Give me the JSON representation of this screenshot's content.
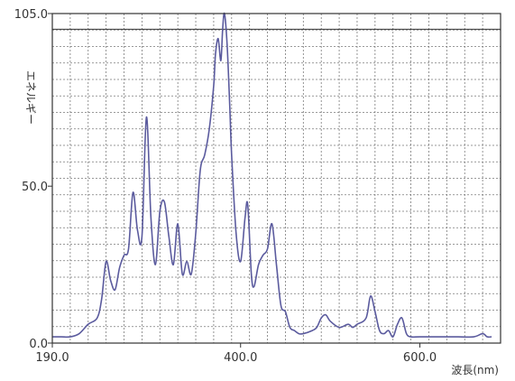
{
  "chart_data": {
    "type": "line",
    "title": "",
    "xlabel": "波長(nm)",
    "ylabel": "エネルギー",
    "xlim": [
      190,
      690
    ],
    "ylim": [
      0,
      105
    ],
    "x_ticks": [
      {
        "value": 190,
        "label": "190.0"
      },
      {
        "value": 400,
        "label": "400.0"
      },
      {
        "value": 600,
        "label": "600.0"
      }
    ],
    "y_ticks": [
      {
        "value": 0,
        "label": "0.0"
      },
      {
        "value": 50,
        "label": "50.0"
      },
      {
        "value": 105,
        "label": "105.0"
      }
    ],
    "reference_line": 100,
    "grid": true,
    "colors": {
      "line": "#5b5b9e",
      "grid": "#7a7a7a",
      "axis": "#333333"
    },
    "series": [
      {
        "name": "",
        "x": [
          190,
          200,
          210,
          220,
          230,
          240,
          245,
          250,
          255,
          260,
          265,
          270,
          275,
          280,
          285,
          290,
          295,
          300,
          305,
          310,
          315,
          320,
          325,
          330,
          335,
          340,
          345,
          350,
          355,
          360,
          365,
          370,
          372,
          375,
          378,
          380,
          382,
          385,
          388,
          390,
          395,
          400,
          405,
          408,
          412,
          415,
          420,
          425,
          430,
          435,
          440,
          445,
          450,
          455,
          460,
          465,
          470,
          480,
          485,
          490,
          495,
          500,
          510,
          520,
          525,
          530,
          540,
          545,
          550,
          555,
          560,
          565,
          570,
          575,
          580,
          585,
          590,
          600,
          620,
          640,
          660,
          670,
          675,
          680
        ],
        "y": [
          2,
          2,
          2,
          3,
          6,
          8,
          14,
          26,
          20,
          17,
          24,
          28,
          30,
          48,
          36,
          34,
          72,
          40,
          25,
          42,
          45,
          34,
          25,
          38,
          22,
          26,
          22,
          35,
          55,
          60,
          68,
          82,
          92,
          97,
          90,
          100,
          105,
          95,
          75,
          60,
          35,
          26,
          40,
          44,
          22,
          18,
          25,
          28,
          30,
          38,
          25,
          12,
          10,
          5,
          4,
          3,
          3,
          4,
          5,
          8,
          9,
          7,
          5,
          6,
          5,
          6,
          8,
          15,
          10,
          4,
          3,
          4,
          2,
          6,
          8,
          3,
          2,
          2,
          2,
          2,
          2,
          3,
          2,
          2
        ]
      }
    ]
  }
}
